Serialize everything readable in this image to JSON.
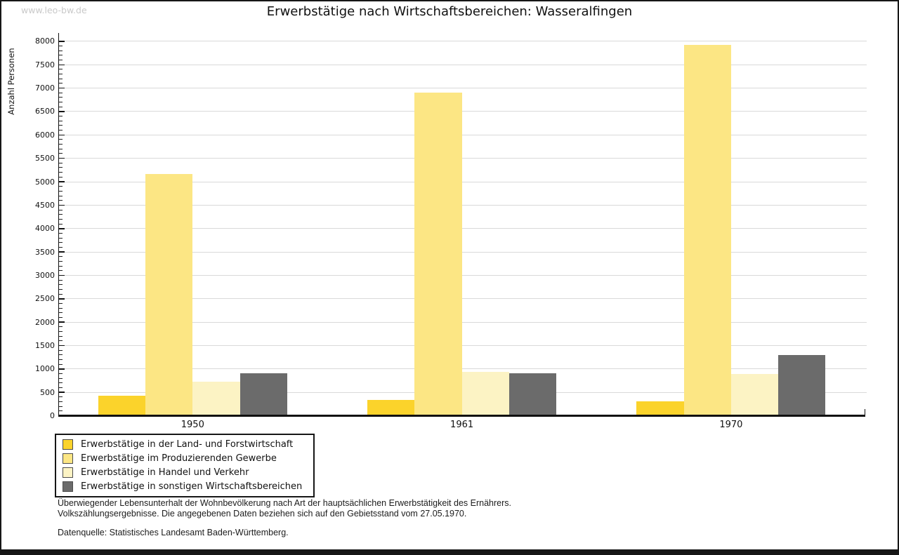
{
  "watermark": "www.leo-bw.de",
  "title": "Erwerbstätige nach Wirtschaftsbereichen: Wasseralfingen",
  "chart_data": {
    "type": "bar",
    "title": "Erwerbstätige nach Wirtschaftsbereichen: Wasseralfingen",
    "xlabel": "",
    "ylabel": "Anzahl Personen",
    "categories": [
      "1950",
      "1961",
      "1970"
    ],
    "series": [
      {
        "name": "Erwerbstätige in der Land- und Forstwirtschaft",
        "color": "#FBD32B",
        "values": [
          430,
          330,
          310
        ]
      },
      {
        "name": "Erwerbstätige im Produzierenden Gewerbe",
        "color": "#FCE684",
        "values": [
          5170,
          6900,
          7930
        ]
      },
      {
        "name": "Erwerbstätige in Handel und Verkehr",
        "color": "#FCF3C4",
        "values": [
          730,
          940,
          890
        ]
      },
      {
        "name": "Erwerbstätige in sonstigen Wirtschaftsbereichen",
        "color": "#6B6B6B",
        "values": [
          910,
          900,
          1300
        ]
      }
    ],
    "ylim": [
      0,
      8000
    ],
    "ytick_step": 500,
    "minor_tick_step": 100,
    "grid": "horizontal-major",
    "legend_position": "bottom-left",
    "axis_color": "#111111",
    "gridline_color": "#d9d9d9"
  },
  "footnotes": {
    "line1": "Überwiegender Lebensunterhalt der Wohnbevölkerung nach Art der hauptsächlichen Erwerbstätigkeit des Ernährers.",
    "line2": "Volkszählungsergebnisse. Die angegebenen Daten beziehen sich auf den Gebietsstand vom 27.05.1970."
  },
  "source": "Datenquelle: Statistisches Landesamt Baden-Württemberg."
}
